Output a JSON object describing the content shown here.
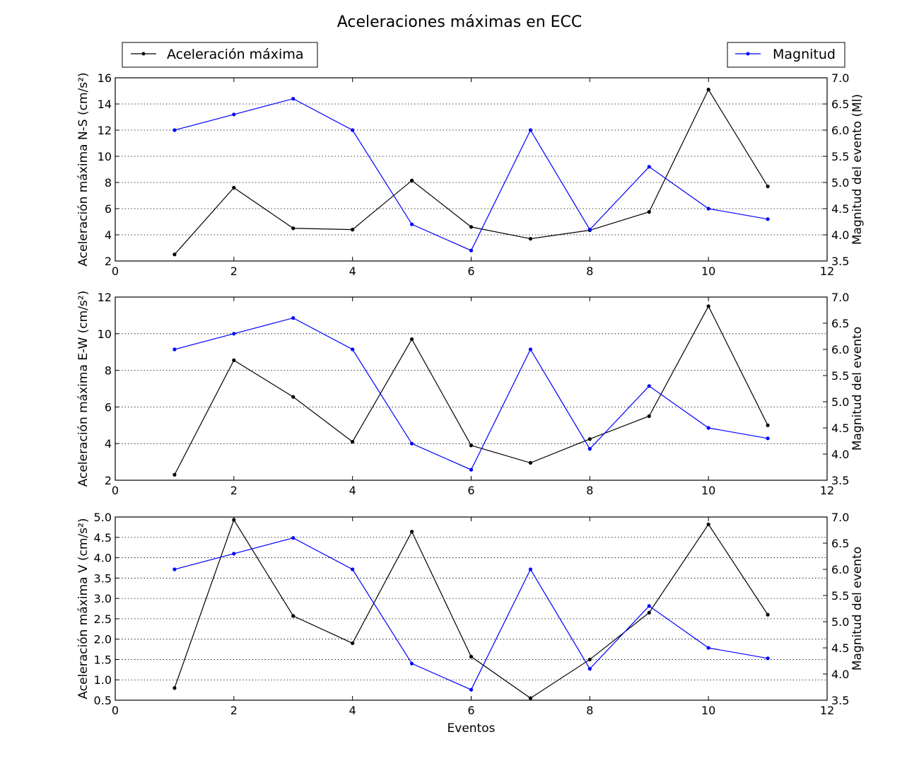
{
  "figure_title": "Aceleraciones máximas en ECC",
  "legend": {
    "left_label": "Aceleración máxima",
    "right_label": "Magnitud"
  },
  "colors": {
    "aceleracion": "#000000",
    "magnitud": "#0000ff",
    "grid": "#000000"
  },
  "chart_data": [
    {
      "type": "line",
      "xlabel": "",
      "ylabel_left": "Aceleración máxima N-S (cm/s²)",
      "ylabel_right": "Magnitud del evento (Ml)",
      "xlim": [
        0,
        12
      ],
      "xticks": [
        0,
        2,
        4,
        6,
        8,
        10,
        12
      ],
      "ylim_left": [
        2,
        16
      ],
      "yticks_left": [
        2,
        4,
        6,
        8,
        10,
        12,
        14,
        16
      ],
      "ylim_right": [
        3.5,
        7.0
      ],
      "yticks_right": [
        3.5,
        4.0,
        4.5,
        5.0,
        5.5,
        6.0,
        6.5,
        7.0
      ],
      "grid": "horizontal-dotted",
      "x": [
        1,
        2,
        3,
        4,
        5,
        6,
        7,
        8,
        9,
        10,
        11
      ],
      "series": [
        {
          "name": "Aceleración máxima",
          "axis": "left",
          "values": [
            2.5,
            7.6,
            4.5,
            4.4,
            8.15,
            4.6,
            3.7,
            4.35,
            5.75,
            15.1,
            7.7
          ]
        },
        {
          "name": "Magnitud",
          "axis": "right",
          "values": [
            6.0,
            6.3,
            6.6,
            6.0,
            4.2,
            3.7,
            6.0,
            4.1,
            5.3,
            4.5,
            4.3
          ]
        }
      ]
    },
    {
      "type": "line",
      "xlabel": "",
      "ylabel_left": "Aceleración máxima E-W (cm/s²)",
      "ylabel_right": "Magnitud del evento",
      "xlim": [
        0,
        12
      ],
      "xticks": [
        0,
        2,
        4,
        6,
        8,
        10,
        12
      ],
      "ylim_left": [
        2,
        12
      ],
      "yticks_left": [
        2,
        4,
        6,
        8,
        10,
        12
      ],
      "ylim_right": [
        3.5,
        7.0
      ],
      "yticks_right": [
        3.5,
        4.0,
        4.5,
        5.0,
        5.5,
        6.0,
        6.5,
        7.0
      ],
      "grid": "horizontal-dotted",
      "x": [
        1,
        2,
        3,
        4,
        5,
        6,
        7,
        8,
        9,
        10,
        11
      ],
      "series": [
        {
          "name": "Aceleración máxima",
          "axis": "left",
          "values": [
            2.3,
            8.55,
            6.55,
            4.1,
            9.7,
            3.9,
            2.95,
            4.25,
            5.5,
            11.5,
            5.0
          ]
        },
        {
          "name": "Magnitud",
          "axis": "right",
          "values": [
            6.0,
            6.3,
            6.6,
            6.0,
            4.2,
            3.7,
            6.0,
            4.1,
            5.3,
            4.5,
            4.3
          ]
        }
      ]
    },
    {
      "type": "line",
      "xlabel": "Eventos",
      "ylabel_left": "Aceleración máxima V (cm/s²)",
      "ylabel_right": "Magnitud del evento",
      "xlim": [
        0,
        12
      ],
      "xticks": [
        0,
        2,
        4,
        6,
        8,
        10,
        12
      ],
      "ylim_left": [
        0.5,
        5.0
      ],
      "yticks_left": [
        0.5,
        1.0,
        1.5,
        2.0,
        2.5,
        3.0,
        3.5,
        4.0,
        4.5,
        5.0
      ],
      "ylim_right": [
        3.5,
        7.0
      ],
      "yticks_right": [
        3.5,
        4.0,
        4.5,
        5.0,
        5.5,
        6.0,
        6.5,
        7.0
      ],
      "grid": "horizontal-dotted",
      "x": [
        1,
        2,
        3,
        4,
        5,
        6,
        7,
        8,
        9,
        10,
        11
      ],
      "series": [
        {
          "name": "Aceleración máxima",
          "axis": "left",
          "values": [
            0.8,
            4.93,
            2.57,
            1.9,
            4.64,
            1.57,
            0.55,
            1.5,
            2.65,
            4.82,
            2.6
          ]
        },
        {
          "name": "Magnitud",
          "axis": "right",
          "values": [
            6.0,
            6.3,
            6.6,
            6.0,
            4.2,
            3.7,
            6.0,
            4.1,
            5.3,
            4.5,
            4.3
          ]
        }
      ]
    }
  ]
}
